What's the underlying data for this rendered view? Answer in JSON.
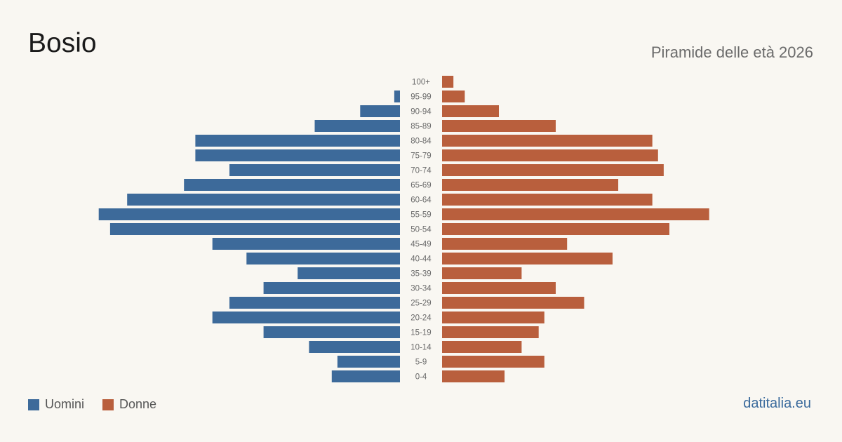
{
  "header": {
    "title": "Bosio",
    "subtitle": "Piramide delle età 2026"
  },
  "legend": {
    "men_label": "Uomini",
    "women_label": "Donne"
  },
  "brand": "datitalia.eu",
  "colors": {
    "men": "#3d6a9a",
    "women": "#b95f3d",
    "background": "#f9f7f2"
  },
  "chart_data": {
    "type": "bar",
    "orientation": "horizontal-pyramid",
    "categories": [
      "100+",
      "95-99",
      "90-94",
      "85-89",
      "80-84",
      "75-79",
      "70-74",
      "65-69",
      "60-64",
      "55-59",
      "50-54",
      "45-49",
      "40-44",
      "35-39",
      "30-34",
      "25-29",
      "20-24",
      "15-19",
      "10-14",
      "5-9",
      "0-4"
    ],
    "series": [
      {
        "name": "Uomini",
        "values": [
          0,
          1,
          7,
          15,
          36,
          36,
          30,
          38,
          48,
          53,
          51,
          33,
          27,
          18,
          24,
          30,
          33,
          24,
          16,
          11,
          12
        ]
      },
      {
        "name": "Donne",
        "values": [
          2,
          4,
          10,
          20,
          37,
          38,
          39,
          31,
          37,
          47,
          40,
          22,
          30,
          14,
          20,
          25,
          18,
          17,
          14,
          18,
          11
        ]
      }
    ],
    "legend_position": "bottom-left",
    "grid": false
  }
}
